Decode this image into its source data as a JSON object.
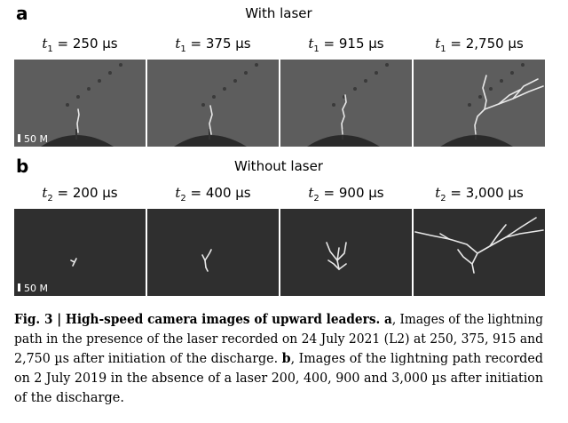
{
  "panels": [
    {
      "label": "a",
      "title": "With laser",
      "scale_bar": "50 M",
      "frames": [
        {
          "var": "t",
          "sub": "1",
          "rest": " = 250 µs"
        },
        {
          "var": "t",
          "sub": "1",
          "rest": " = 375 µs"
        },
        {
          "var": "t",
          "sub": "1",
          "rest": " = 915 µs"
        },
        {
          "var": "t",
          "sub": "1",
          "rest": " = 2,750 µs"
        }
      ]
    },
    {
      "label": "b",
      "title": "Without laser",
      "scale_bar": "50 M",
      "frames": [
        {
          "var": "t",
          "sub": "2",
          "rest": " = 200 µs"
        },
        {
          "var": "t",
          "sub": "2",
          "rest": " = 400 µs"
        },
        {
          "var": "t",
          "sub": "2",
          "rest": " = 900 µs"
        },
        {
          "var": "t",
          "sub": "2",
          "rest": " = 3,000 µs"
        }
      ]
    }
  ],
  "caption": {
    "lines": [
      [
        {
          "text": "Fig. 3 | High-speed camera images of upward leaders. a",
          "bold": true
        },
        {
          "text": ", Images of the lightning",
          "bold": false
        }
      ],
      [
        {
          "text": "path in the presence of the laser recorded on 24 July 2021 (L2) at 250, 375, 915 and",
          "bold": false
        }
      ],
      [
        {
          "text": "2,750 µs after initiation of the discharge. ",
          "bold": false
        },
        {
          "text": "b",
          "bold": true
        },
        {
          "text": ", Images of the lightning path recorded",
          "bold": false
        }
      ],
      [
        {
          "text": "on 2 July 2019 in the absence of a laser 200, 400, 900 and 3,000 µs after initiation",
          "bold": false
        }
      ],
      [
        {
          "text": "of the discharge.",
          "bold": false
        }
      ]
    ]
  }
}
